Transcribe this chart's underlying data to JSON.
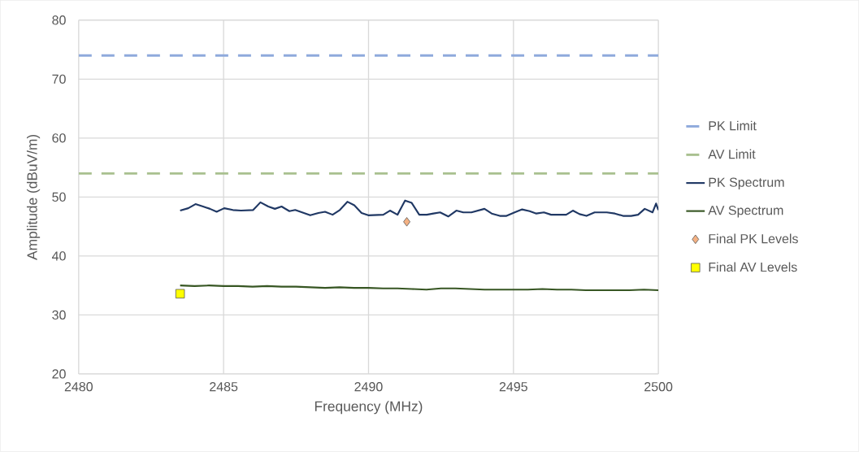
{
  "chart_data": {
    "type": "line",
    "xlabel": "Frequency (MHz)",
    "ylabel": "Amplitude (dBuV/m)",
    "xlim": [
      2480,
      2500
    ],
    "xticks": [
      2480,
      2485,
      2490,
      2495,
      2500
    ],
    "ylim": [
      20,
      80
    ],
    "yticks": [
      20,
      30,
      40,
      50,
      60,
      70,
      80
    ],
    "grid": true,
    "legend": "right",
    "series": [
      {
        "name": "PK Limit",
        "line_style": "dashed",
        "color": "#8faadc",
        "x": [
          2480,
          2500
        ],
        "values": [
          74,
          74
        ]
      },
      {
        "name": "AV Limit",
        "line_style": "dashed",
        "color": "#a9c08f",
        "x": [
          2480,
          2500
        ],
        "values": [
          54,
          54
        ]
      },
      {
        "name": "PK Spectrum",
        "line_style": "solid",
        "color": "#203864",
        "x": [
          2483.5,
          2483.78,
          2484.03,
          2484.29,
          2484.53,
          2484.76,
          2485.02,
          2485.32,
          2485.6,
          2486.02,
          2486.27,
          2486.54,
          2486.77,
          2487.0,
          2487.27,
          2487.47,
          2487.71,
          2487.99,
          2488.27,
          2488.5,
          2488.76,
          2489.01,
          2489.27,
          2489.51,
          2489.76,
          2489.99,
          2490.51,
          2490.74,
          2491.0,
          2491.26,
          2491.49,
          2491.75,
          2492.01,
          2492.24,
          2492.47,
          2492.75,
          2493.03,
          2493.27,
          2493.55,
          2494.0,
          2494.25,
          2494.53,
          2494.76,
          2495.04,
          2495.3,
          2495.56,
          2495.79,
          2496.05,
          2496.3,
          2496.82,
          2497.05,
          2497.28,
          2497.52,
          2497.8,
          2498.22,
          2498.5,
          2498.78,
          2499.06,
          2499.3,
          2499.53,
          2499.8,
          2499.92,
          2500
        ],
        "values": [
          47.7,
          48.1,
          48.8,
          48.4,
          48.0,
          47.5,
          48.1,
          47.8,
          47.7,
          47.8,
          49.1,
          48.4,
          48.0,
          48.4,
          47.6,
          47.8,
          47.4,
          46.9,
          47.3,
          47.5,
          47.0,
          47.8,
          49.2,
          48.6,
          47.3,
          46.9,
          47.0,
          47.7,
          47.0,
          49.4,
          49.0,
          47.0,
          47.0,
          47.2,
          47.4,
          46.7,
          47.7,
          47.4,
          47.4,
          48.0,
          47.2,
          46.8,
          46.8,
          47.4,
          47.9,
          47.6,
          47.2,
          47.4,
          47.0,
          47.0,
          47.7,
          47.1,
          46.8,
          47.4,
          47.4,
          47.2,
          46.8,
          46.8,
          47.0,
          48.0,
          47.4,
          48.9,
          47.8
        ]
      },
      {
        "name": "AV Spectrum",
        "line_style": "solid",
        "color": "#375623",
        "x": [
          2483.5,
          2484.0,
          2484.5,
          2485.0,
          2485.5,
          2486.0,
          2486.5,
          2487.0,
          2487.5,
          2488.0,
          2488.5,
          2489.0,
          2489.5,
          2490.0,
          2490.5,
          2491.0,
          2491.5,
          2492.0,
          2492.5,
          2493.0,
          2493.5,
          2494.0,
          2494.5,
          2495.0,
          2495.5,
          2496.0,
          2496.5,
          2497.0,
          2497.5,
          2498.0,
          2498.5,
          2499.0,
          2499.5,
          2500.0
        ],
        "values": [
          35.0,
          34.9,
          35.0,
          34.9,
          34.9,
          34.8,
          34.9,
          34.8,
          34.8,
          34.7,
          34.6,
          34.7,
          34.6,
          34.6,
          34.5,
          34.5,
          34.4,
          34.3,
          34.5,
          34.5,
          34.4,
          34.3,
          34.3,
          34.3,
          34.3,
          34.4,
          34.3,
          34.3,
          34.2,
          34.2,
          34.2,
          34.2,
          34.3,
          34.2
        ]
      },
      {
        "name": "Final PK Levels",
        "type": "scatter",
        "marker": "diamond",
        "color": "#f4b183",
        "x": [
          2491.32
        ],
        "values": [
          45.8
        ]
      },
      {
        "name": "Final AV Levels",
        "type": "scatter",
        "marker": "square",
        "color": "#ffff00",
        "x": [
          2483.5
        ],
        "values": [
          33.6
        ]
      }
    ]
  }
}
